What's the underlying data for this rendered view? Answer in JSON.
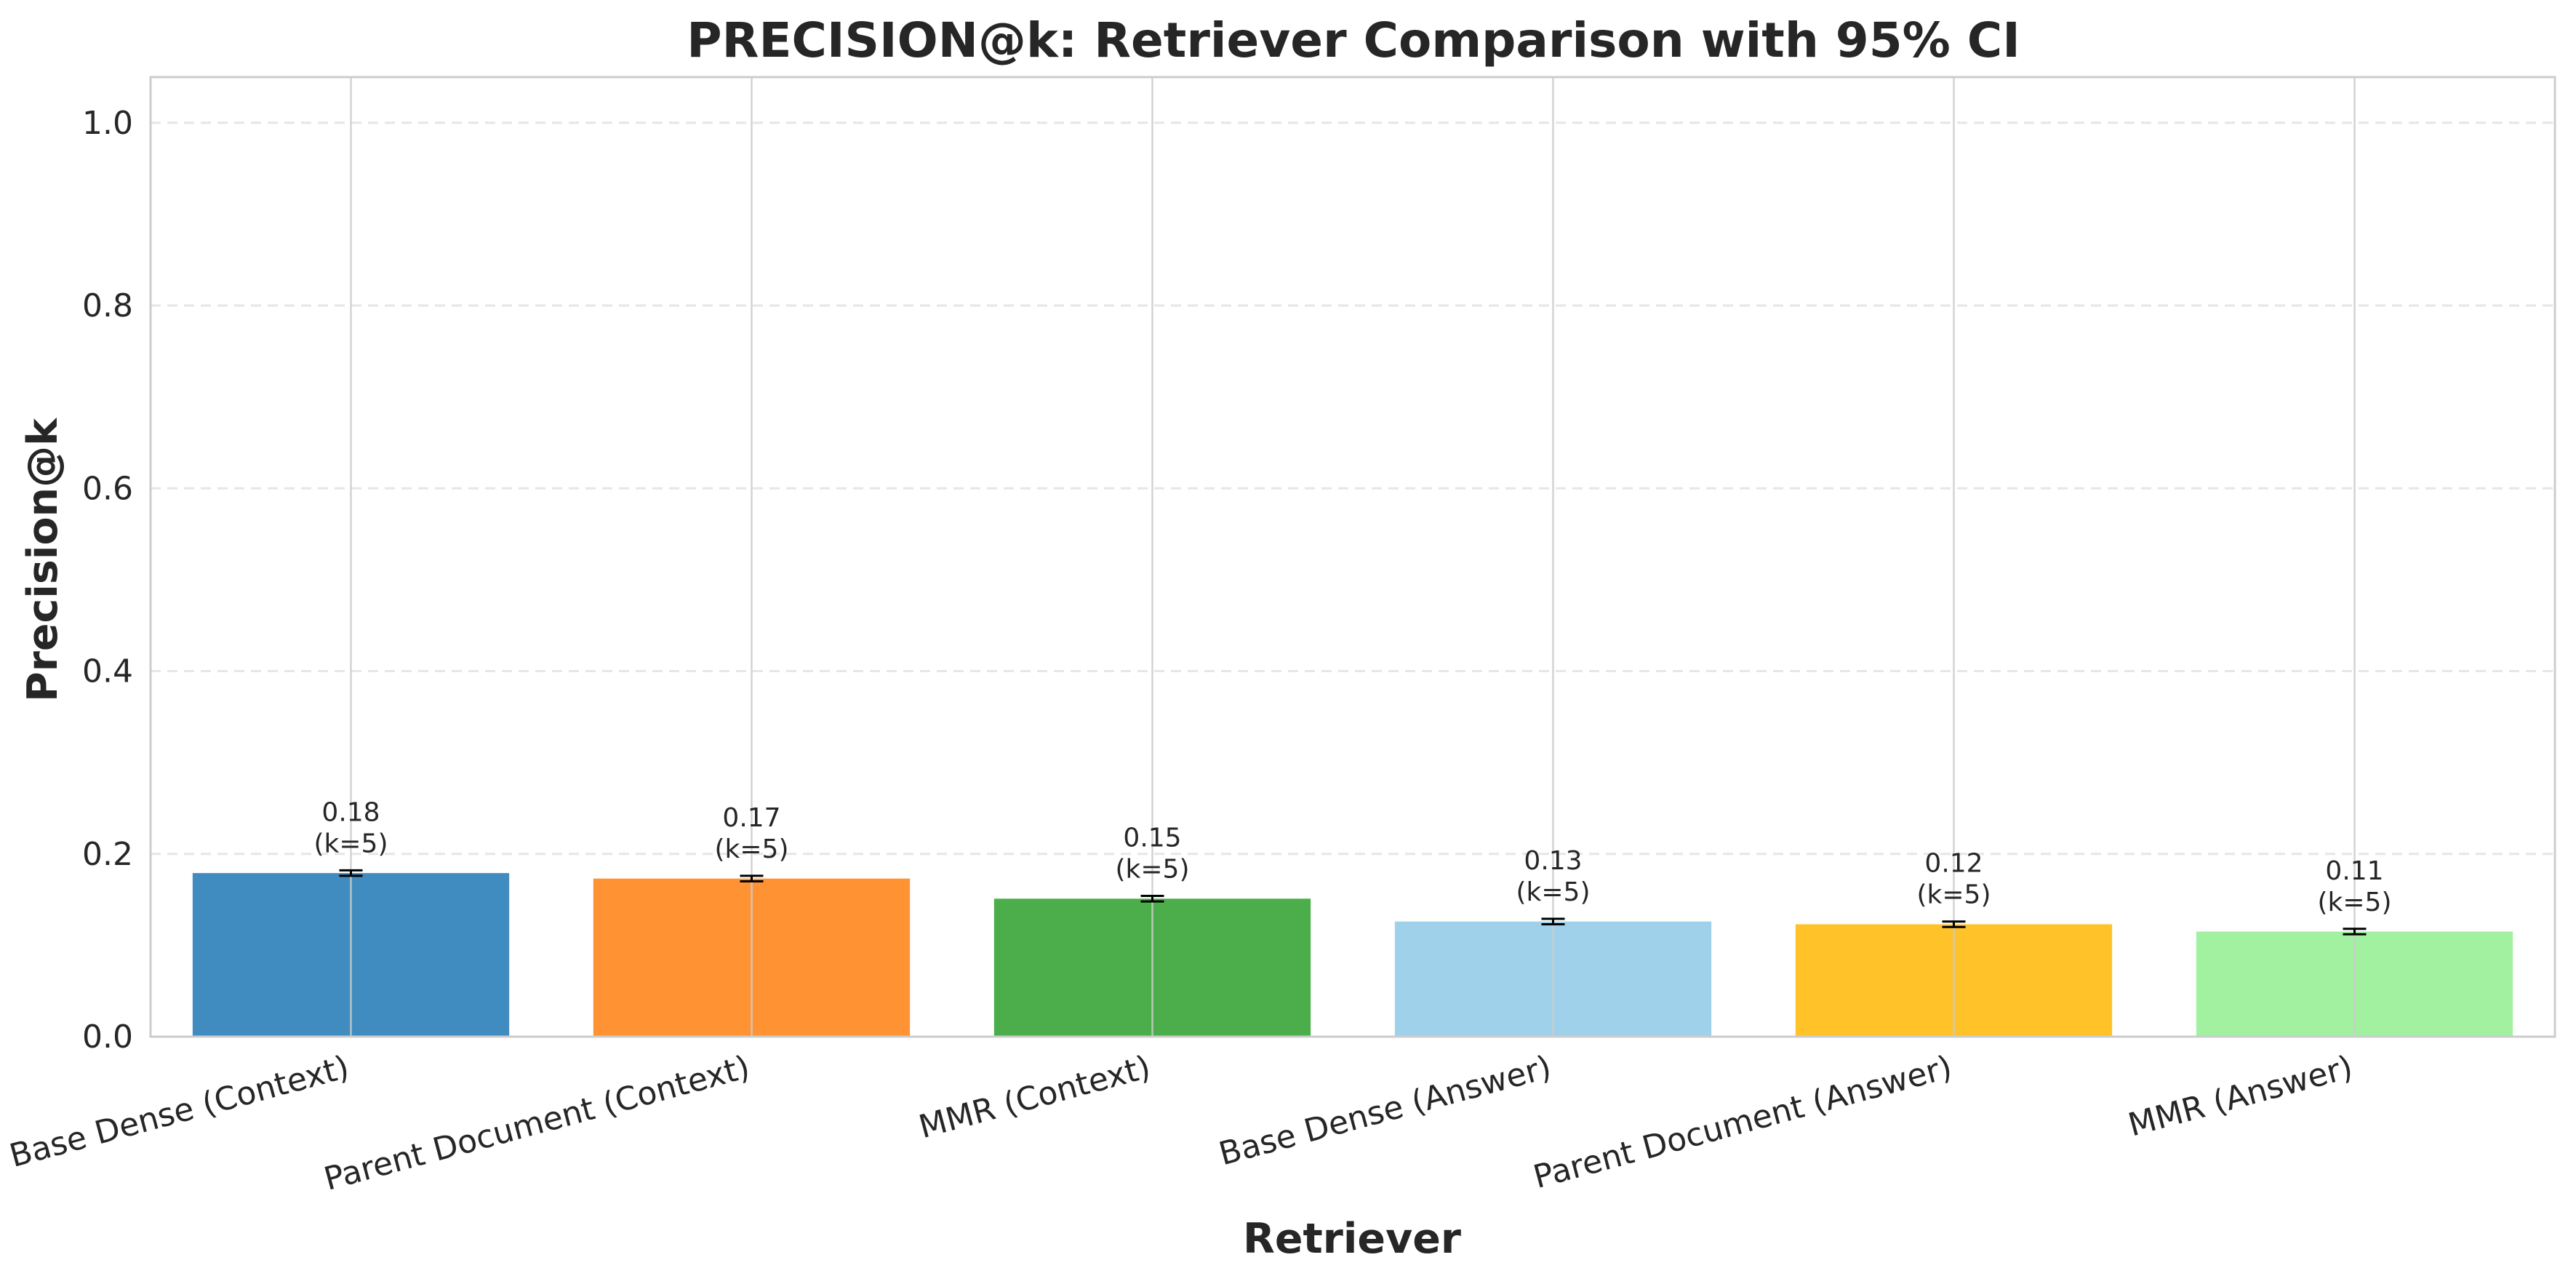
{
  "chart_data": {
    "type": "bar",
    "title": "PRECISION@k: Retriever Comparison with 95% CI",
    "xlabel": "Retriever",
    "ylabel": "Precision@k",
    "ylim": [
      0,
      1.05
    ],
    "yticks": [
      0.0,
      0.2,
      0.4,
      0.6,
      0.8,
      1.0
    ],
    "ytick_labels": [
      "0.0",
      "0.2",
      "0.4",
      "0.6",
      "0.8",
      "1.0"
    ],
    "grid": true,
    "categories": [
      "Base Dense (Context)",
      "Parent Document (Context)",
      "MMR (Context)",
      "Base Dense (Answer)",
      "Parent Document (Answer)",
      "MMR (Answer)"
    ],
    "values": [
      0.179,
      0.173,
      0.151,
      0.126,
      0.123,
      0.115
    ],
    "ci_low": [
      0.176,
      0.17,
      0.148,
      0.123,
      0.12,
      0.112
    ],
    "ci_high": [
      0.182,
      0.176,
      0.154,
      0.129,
      0.126,
      0.118
    ],
    "value_labels": [
      "0.18",
      "0.17",
      "0.15",
      "0.13",
      "0.12",
      "0.11"
    ],
    "k_labels": [
      "(k=5)",
      "(k=5)",
      "(k=5)",
      "(k=5)",
      "(k=5)",
      "(k=5)"
    ],
    "colors": [
      "#1f77b4",
      "#ff7f0e",
      "#2ca02c",
      "#8ecae6",
      "#ffb703",
      "#90ee90"
    ]
  }
}
